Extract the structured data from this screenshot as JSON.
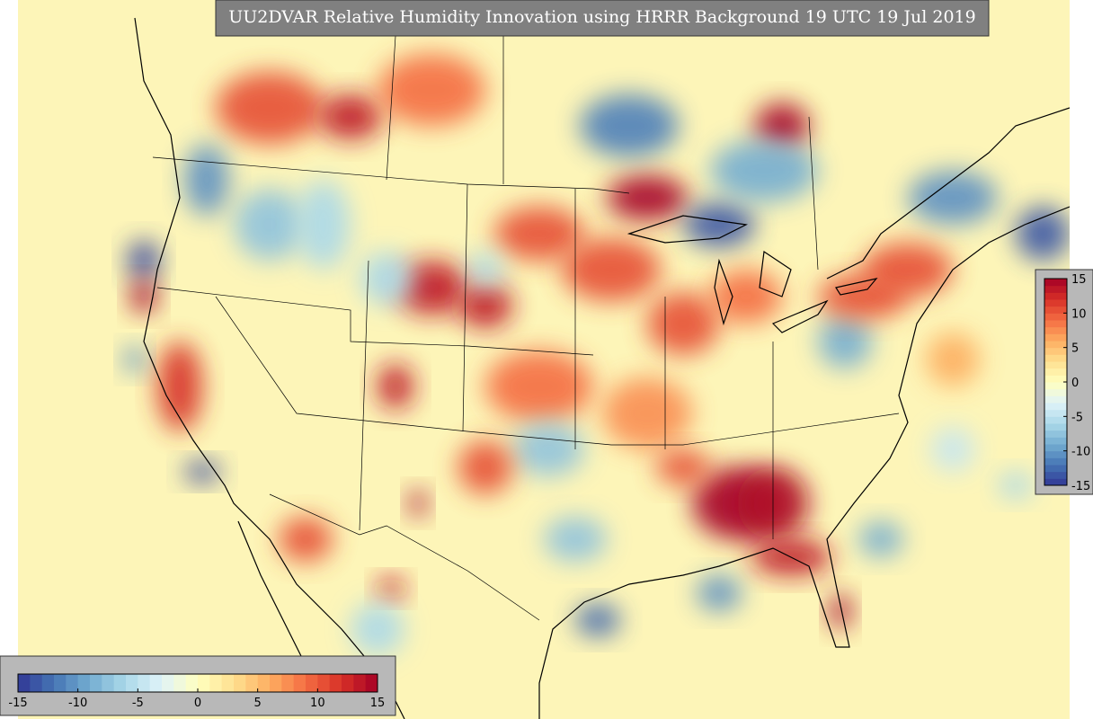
{
  "title": "UU2DVAR Relative Humidity Innovation using HRRR Background 19 UTC 19 Jul 2019",
  "colorbar_right": {
    "lim": [
      -15,
      15
    ],
    "ticks": [
      15,
      10,
      5,
      0,
      -5,
      -10,
      -15
    ]
  },
  "colorbar_bottom": {
    "lim": [
      -15,
      15
    ],
    "ticks": [
      -15,
      -10,
      -5,
      0,
      5,
      10,
      15
    ]
  }
}
